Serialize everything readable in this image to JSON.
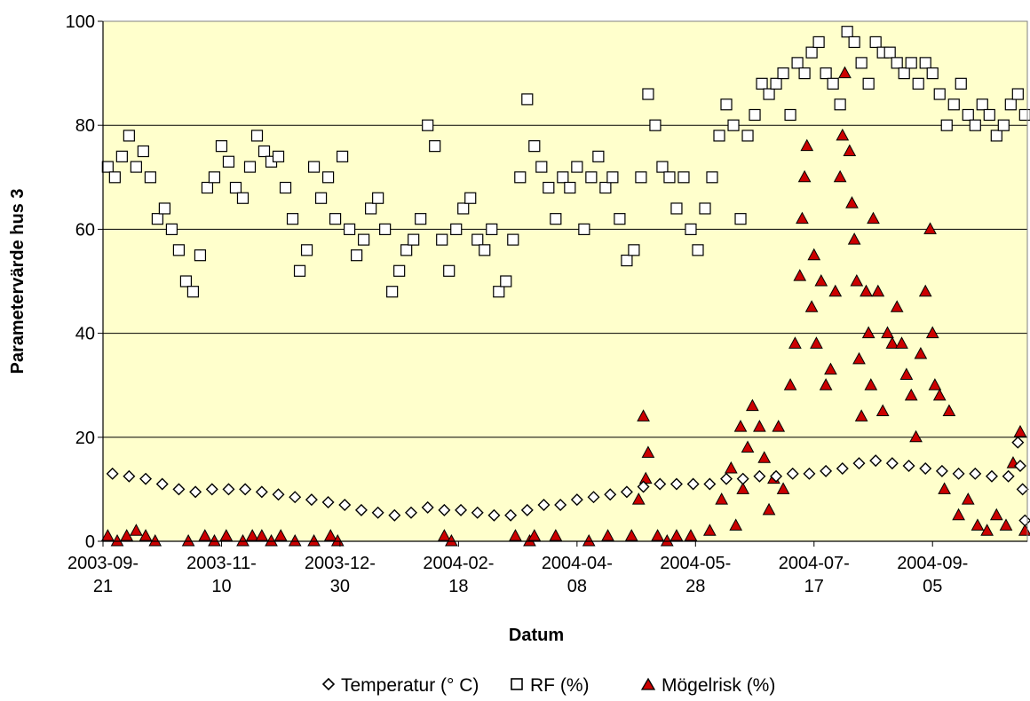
{
  "chart_data": {
    "type": "scatter",
    "title": "",
    "xlabel": "Datum",
    "ylabel": "Parametervärde hus 3",
    "ylim": [
      0,
      100
    ],
    "yticks": [
      "0",
      "20",
      "40",
      "60",
      "80",
      "100"
    ],
    "xlim": [
      "2003-09-21",
      "2004-10-15"
    ],
    "xticks": [
      {
        "date": "2003-09-21",
        "line1": "2003-09-",
        "line2": "21"
      },
      {
        "date": "2003-11-10",
        "line1": "2003-11-",
        "line2": "10"
      },
      {
        "date": "2003-12-30",
        "line1": "2003-12-",
        "line2": "30"
      },
      {
        "date": "2004-02-18",
        "line1": "2004-02-",
        "line2": "18"
      },
      {
        "date": "2004-04-08",
        "line1": "2004-04-",
        "line2": "08"
      },
      {
        "date": "2004-05-28",
        "line1": "2004-05-",
        "line2": "28"
      },
      {
        "date": "2004-07-17",
        "line1": "2004-07-",
        "line2": "17"
      },
      {
        "date": "2004-09-05",
        "line1": "2004-09-",
        "line2": "05"
      }
    ],
    "grid": true,
    "legend_placement": "bottom-center",
    "plot_background": "#FFFFCC",
    "series": [
      {
        "name": "Temperatur (° C)",
        "marker": "diamond",
        "color": "#FFFFFF",
        "edge": "#000000",
        "x": [
          "2003-09-25",
          "2003-10-02",
          "2003-10-09",
          "2003-10-16",
          "2003-10-23",
          "2003-10-30",
          "2003-11-06",
          "2003-11-13",
          "2003-11-20",
          "2003-11-27",
          "2003-12-04",
          "2003-12-11",
          "2003-12-18",
          "2003-12-25",
          "2004-01-01",
          "2004-01-08",
          "2004-01-15",
          "2004-01-22",
          "2004-01-29",
          "2004-02-05",
          "2004-02-12",
          "2004-02-19",
          "2004-02-26",
          "2004-03-04",
          "2004-03-11",
          "2004-03-18",
          "2004-03-25",
          "2004-04-01",
          "2004-04-08",
          "2004-04-15",
          "2004-04-22",
          "2004-04-29",
          "2004-05-06",
          "2004-05-13",
          "2004-05-20",
          "2004-05-27",
          "2004-06-03",
          "2004-06-10",
          "2004-06-17",
          "2004-06-24",
          "2004-07-01",
          "2004-07-08",
          "2004-07-15",
          "2004-07-22",
          "2004-07-29",
          "2004-08-05",
          "2004-08-12",
          "2004-08-19",
          "2004-08-26",
          "2004-09-02",
          "2004-09-09",
          "2004-09-16",
          "2004-09-23",
          "2004-09-30",
          "2004-10-07",
          "2004-10-11",
          "2004-10-12",
          "2004-10-13",
          "2004-10-14"
        ],
        "y": [
          13,
          12.5,
          12,
          11,
          10,
          9.5,
          10,
          10,
          10,
          9.5,
          9,
          8.5,
          8,
          7.5,
          7,
          6,
          5.5,
          5,
          5.5,
          6.5,
          6,
          6,
          5.5,
          5,
          5,
          6,
          7,
          7,
          8,
          8.5,
          9,
          9.5,
          10.5,
          11,
          11,
          11,
          11,
          12,
          12,
          12.5,
          12.5,
          13,
          13,
          13.5,
          14,
          15,
          15.5,
          15,
          14.5,
          14,
          13.5,
          13,
          13,
          12.5,
          12.5,
          19,
          14.5,
          10,
          4
        ]
      },
      {
        "name": "RF (%)",
        "marker": "square",
        "color": "#FFFFFF",
        "edge": "#000000",
        "x": [
          "2003-09-23",
          "2003-09-26",
          "2003-09-29",
          "2003-10-02",
          "2003-10-05",
          "2003-10-08",
          "2003-10-11",
          "2003-10-14",
          "2003-10-17",
          "2003-10-20",
          "2003-10-23",
          "2003-10-26",
          "2003-10-29",
          "2003-11-01",
          "2003-11-04",
          "2003-11-07",
          "2003-11-10",
          "2003-11-13",
          "2003-11-16",
          "2003-11-19",
          "2003-11-22",
          "2003-11-25",
          "2003-11-28",
          "2003-12-01",
          "2003-12-04",
          "2003-12-07",
          "2003-12-10",
          "2003-12-13",
          "2003-12-16",
          "2003-12-19",
          "2003-12-22",
          "2003-12-25",
          "2003-12-28",
          "2003-12-31",
          "2004-01-03",
          "2004-01-06",
          "2004-01-09",
          "2004-01-12",
          "2004-01-15",
          "2004-01-18",
          "2004-01-21",
          "2004-01-24",
          "2004-01-27",
          "2004-01-30",
          "2004-02-02",
          "2004-02-05",
          "2004-02-08",
          "2004-02-11",
          "2004-02-14",
          "2004-02-17",
          "2004-02-20",
          "2004-02-23",
          "2004-02-26",
          "2004-02-29",
          "2004-03-03",
          "2004-03-06",
          "2004-03-09",
          "2004-03-12",
          "2004-03-15",
          "2004-03-18",
          "2004-03-21",
          "2004-03-24",
          "2004-03-27",
          "2004-03-30",
          "2004-04-02",
          "2004-04-05",
          "2004-04-08",
          "2004-04-11",
          "2004-04-14",
          "2004-04-17",
          "2004-04-20",
          "2004-04-23",
          "2004-04-26",
          "2004-04-29",
          "2004-05-02",
          "2004-05-05",
          "2004-05-08",
          "2004-05-11",
          "2004-05-14",
          "2004-05-17",
          "2004-05-20",
          "2004-05-23",
          "2004-05-26",
          "2004-05-29",
          "2004-06-01",
          "2004-06-04",
          "2004-06-07",
          "2004-06-10",
          "2004-06-13",
          "2004-06-16",
          "2004-06-19",
          "2004-06-22",
          "2004-06-25",
          "2004-06-28",
          "2004-07-01",
          "2004-07-04",
          "2004-07-07",
          "2004-07-10",
          "2004-07-13",
          "2004-07-16",
          "2004-07-19",
          "2004-07-22",
          "2004-07-25",
          "2004-07-28",
          "2004-07-31",
          "2004-08-03",
          "2004-08-06",
          "2004-08-09",
          "2004-08-12",
          "2004-08-15",
          "2004-08-18",
          "2004-08-21",
          "2004-08-24",
          "2004-08-27",
          "2004-08-30",
          "2004-09-02",
          "2004-09-05",
          "2004-09-08",
          "2004-09-11",
          "2004-09-14",
          "2004-09-17",
          "2004-09-20",
          "2004-09-23",
          "2004-09-26",
          "2004-09-29",
          "2004-10-02",
          "2004-10-05",
          "2004-10-08",
          "2004-10-11",
          "2004-10-14"
        ],
        "y": [
          72,
          70,
          74,
          78,
          72,
          75,
          70,
          62,
          64,
          60,
          56,
          50,
          48,
          55,
          68,
          70,
          76,
          73,
          68,
          66,
          72,
          78,
          75,
          73,
          74,
          68,
          62,
          52,
          56,
          72,
          66,
          70,
          62,
          74,
          60,
          55,
          58,
          64,
          66,
          60,
          48,
          52,
          56,
          58,
          62,
          80,
          76,
          58,
          52,
          60,
          64,
          66,
          58,
          56,
          60,
          48,
          50,
          58,
          70,
          85,
          76,
          72,
          68,
          62,
          70,
          68,
          72,
          60,
          70,
          74,
          68,
          70,
          62,
          54,
          56,
          70,
          86,
          80,
          72,
          70,
          64,
          70,
          60,
          56,
          64,
          70,
          78,
          84,
          80,
          62,
          78,
          82,
          88,
          86,
          88,
          90,
          82,
          92,
          90,
          94,
          96,
          90,
          88,
          84,
          98,
          96,
          92,
          88,
          96,
          94,
          94,
          92,
          90,
          92,
          88,
          92,
          90,
          86,
          80,
          84,
          88,
          82,
          80,
          84,
          82,
          78,
          80,
          84,
          86,
          82
        ]
      },
      {
        "name": "Mögelrisk (%)",
        "marker": "triangle",
        "color": "#CC0000",
        "edge": "#000000",
        "x": [
          "2003-09-23",
          "2003-09-27",
          "2003-10-01",
          "2003-10-05",
          "2003-10-09",
          "2003-10-13",
          "2003-10-27",
          "2003-11-03",
          "2003-11-07",
          "2003-11-12",
          "2003-11-19",
          "2003-11-23",
          "2003-11-27",
          "2003-12-01",
          "2003-12-05",
          "2003-12-11",
          "2003-12-19",
          "2003-12-26",
          "2003-12-29",
          "2004-02-12",
          "2004-02-15",
          "2004-03-13",
          "2004-03-19",
          "2004-03-21",
          "2004-03-30",
          "2004-04-13",
          "2004-04-21",
          "2004-05-01",
          "2004-05-04",
          "2004-05-06",
          "2004-05-07",
          "2004-05-08",
          "2004-05-12",
          "2004-05-16",
          "2004-05-20",
          "2004-05-26",
          "2004-06-03",
          "2004-06-08",
          "2004-06-12",
          "2004-06-14",
          "2004-06-16",
          "2004-06-17",
          "2004-06-19",
          "2004-06-21",
          "2004-06-24",
          "2004-06-26",
          "2004-06-28",
          "2004-06-30",
          "2004-07-02",
          "2004-07-04",
          "2004-07-07",
          "2004-07-09",
          "2004-07-11",
          "2004-07-12",
          "2004-07-13",
          "2004-07-14",
          "2004-07-16",
          "2004-07-17",
          "2004-07-18",
          "2004-07-20",
          "2004-07-22",
          "2004-07-24",
          "2004-07-26",
          "2004-07-28",
          "2004-07-29",
          "2004-07-30",
          "2004-08-01",
          "2004-08-02",
          "2004-08-03",
          "2004-08-04",
          "2004-08-05",
          "2004-08-06",
          "2004-08-08",
          "2004-08-09",
          "2004-08-10",
          "2004-08-11",
          "2004-08-13",
          "2004-08-15",
          "2004-08-17",
          "2004-08-19",
          "2004-08-21",
          "2004-08-23",
          "2004-08-25",
          "2004-08-27",
          "2004-08-29",
          "2004-08-31",
          "2004-09-02",
          "2004-09-04",
          "2004-09-05",
          "2004-09-06",
          "2004-09-08",
          "2004-09-10",
          "2004-09-12",
          "2004-09-16",
          "2004-09-20",
          "2004-09-24",
          "2004-09-28",
          "2004-10-02",
          "2004-10-06",
          "2004-10-09",
          "2004-10-12",
          "2004-10-14"
        ],
        "y": [
          1,
          0,
          1,
          2,
          1,
          0,
          0,
          1,
          0,
          1,
          0,
          1,
          1,
          0,
          1,
          0,
          0,
          1,
          0,
          1,
          0,
          1,
          0,
          1,
          1,
          0,
          1,
          1,
          8,
          24,
          12,
          17,
          1,
          0,
          1,
          1,
          2,
          8,
          14,
          3,
          22,
          10,
          18,
          26,
          22,
          16,
          6,
          12,
          22,
          10,
          30,
          38,
          51,
          62,
          70,
          76,
          45,
          55,
          38,
          50,
          30,
          33,
          48,
          70,
          78,
          90,
          75,
          65,
          58,
          50,
          35,
          24,
          48,
          40,
          30,
          62,
          48,
          25,
          40,
          38,
          45,
          38,
          32,
          28,
          20,
          36,
          48,
          60,
          40,
          30,
          28,
          10,
          25,
          5,
          8,
          3,
          2,
          5,
          3,
          15,
          21,
          2
        ]
      }
    ]
  }
}
